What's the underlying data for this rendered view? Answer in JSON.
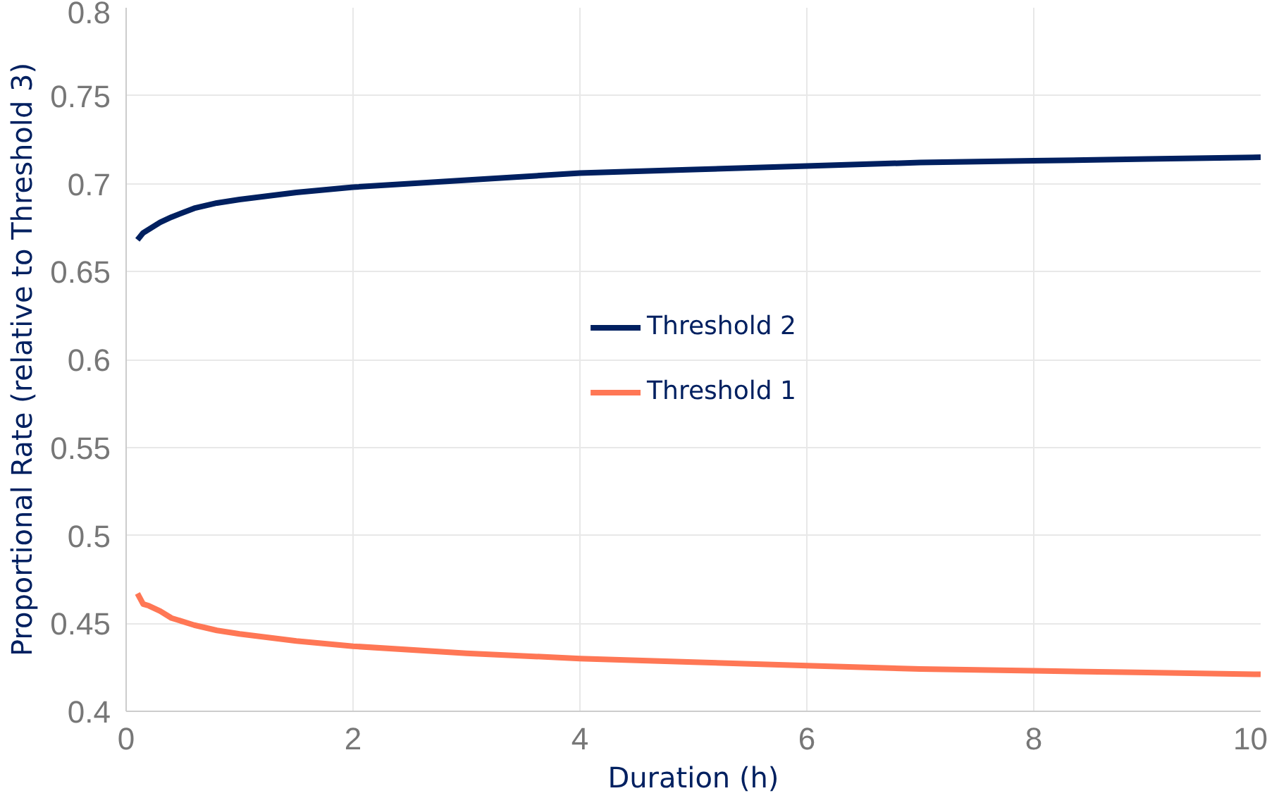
{
  "chart_data": {
    "type": "line",
    "xlabel": "Duration (h)",
    "ylabel": "Proportional Rate (relative to Threshold 3)",
    "x": [
      0.1,
      0.15,
      0.2,
      0.3,
      0.4,
      0.6,
      0.8,
      1,
      1.5,
      2,
      3,
      4,
      5,
      6,
      7,
      8,
      9,
      10
    ],
    "series": [
      {
        "name": "Threshold 2",
        "color": "#002060",
        "values": [
          0.668,
          0.672,
          0.674,
          0.678,
          0.681,
          0.686,
          0.689,
          0.691,
          0.695,
          0.698,
          0.702,
          0.706,
          0.708,
          0.71,
          0.712,
          0.713,
          0.714,
          0.715
        ]
      },
      {
        "name": "Threshold 1",
        "color": "#ff7755",
        "values": [
          0.467,
          0.461,
          0.46,
          0.457,
          0.453,
          0.449,
          0.446,
          0.444,
          0.44,
          0.437,
          0.433,
          0.43,
          0.428,
          0.426,
          0.424,
          0.423,
          0.422,
          0.421
        ]
      }
    ],
    "xlim": [
      0,
      10
    ],
    "xticks": [
      0,
      2,
      4,
      6,
      8,
      10
    ],
    "ylim": [
      0.4,
      0.8
    ],
    "yticks": [
      0.4,
      0.45,
      0.5,
      0.55,
      0.6,
      0.65,
      0.7,
      0.75,
      0.8
    ],
    "grid": true,
    "legend": "center",
    "line_style": "solid"
  }
}
